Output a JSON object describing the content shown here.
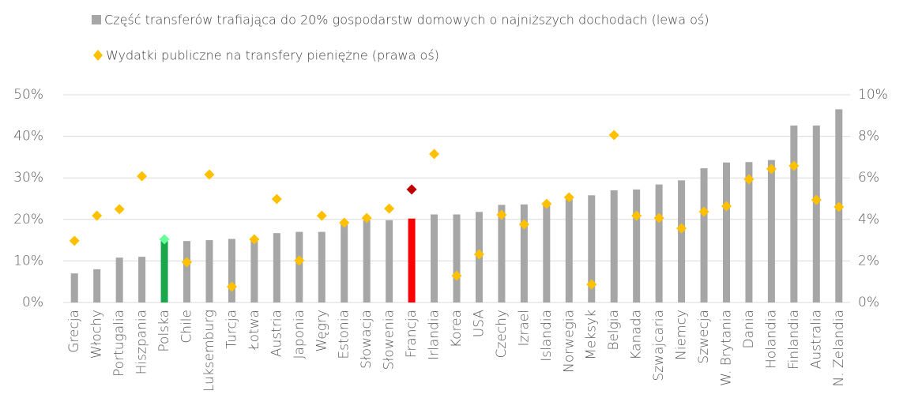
{
  "chart_data": {
    "type": "bar",
    "categories": [
      "Grecja",
      "Włochy",
      "Portugalia",
      "Hiszpania",
      "Polska",
      "Chile",
      "Luksemburg",
      "Turcja",
      "Łotwa",
      "Austria",
      "Japonia",
      "Węgry",
      "Estonia",
      "Słowacja",
      "Słowenia",
      "Francja",
      "Irlandia",
      "Korea",
      "USA",
      "Czechy",
      "Izrael",
      "Islandia",
      "Norwegia",
      "Meksyk",
      "Belgia",
      "Kanada",
      "Szwajcaria",
      "Niemcy",
      "Szwecja",
      "W. Brytania",
      "Dania",
      "Holandia",
      "Finlandia",
      "Australia",
      "N. Zelandia"
    ],
    "series": [
      {
        "name": "Część transferów trafiająca do 20% gospodarstw domowych o najniższych dochodach (lewa oś)",
        "type": "bar",
        "color": "#a6a6a6",
        "point_colors": {
          "4": "#1aa64a",
          "15": "#ff0000"
        },
        "values": [
          7,
          8,
          10.8,
          11,
          15,
          14.8,
          15,
          15.3,
          15.5,
          16.7,
          17,
          17,
          19,
          19.8,
          19.8,
          20.2,
          21.2,
          21.2,
          21.8,
          23.5,
          23.6,
          24,
          25,
          25.8,
          27,
          27.2,
          28.4,
          29.4,
          32.3,
          33.7,
          33.8,
          34.3,
          42.6,
          42.6,
          46.5
        ]
      },
      {
        "name": "Wydatki publiczne na transfery pieniężne (prawa oś)",
        "type": "scatter",
        "axis": "y2",
        "color": "#ffc000",
        "point_colors": {
          "4": "#66ff99",
          "15": "#c00000"
        },
        "values": [
          2.97,
          4.18,
          4.49,
          6.08,
          3.04,
          1.94,
          6.16,
          0.76,
          3.04,
          4.98,
          2.02,
          4.18,
          3.84,
          4.07,
          4.52,
          5.44,
          7.15,
          1.29,
          2.32,
          4.22,
          3.76,
          4.75,
          5.06,
          0.87,
          8.06,
          4.18,
          4.07,
          3.57,
          4.37,
          4.64,
          5.93,
          6.43,
          6.58,
          4.94,
          4.6
        ]
      }
    ],
    "ylim": [
      0,
      50
    ],
    "yticks": [
      {
        "value": 0,
        "label": "0%"
      },
      {
        "value": 10,
        "label": "10%"
      },
      {
        "value": 20,
        "label": "20%"
      },
      {
        "value": 30,
        "label": "30%"
      },
      {
        "value": 40,
        "label": "40%"
      },
      {
        "value": 50,
        "label": "50%"
      }
    ],
    "y2lim": [
      0,
      10
    ],
    "y2ticks": [
      {
        "value": 0,
        "label": "0%"
      },
      {
        "value": 2,
        "label": "2%"
      },
      {
        "value": 4,
        "label": "4%"
      },
      {
        "value": 6,
        "label": "6%"
      },
      {
        "value": 8,
        "label": "8%"
      },
      {
        "value": 10,
        "label": "10%"
      }
    ],
    "grid": true
  }
}
